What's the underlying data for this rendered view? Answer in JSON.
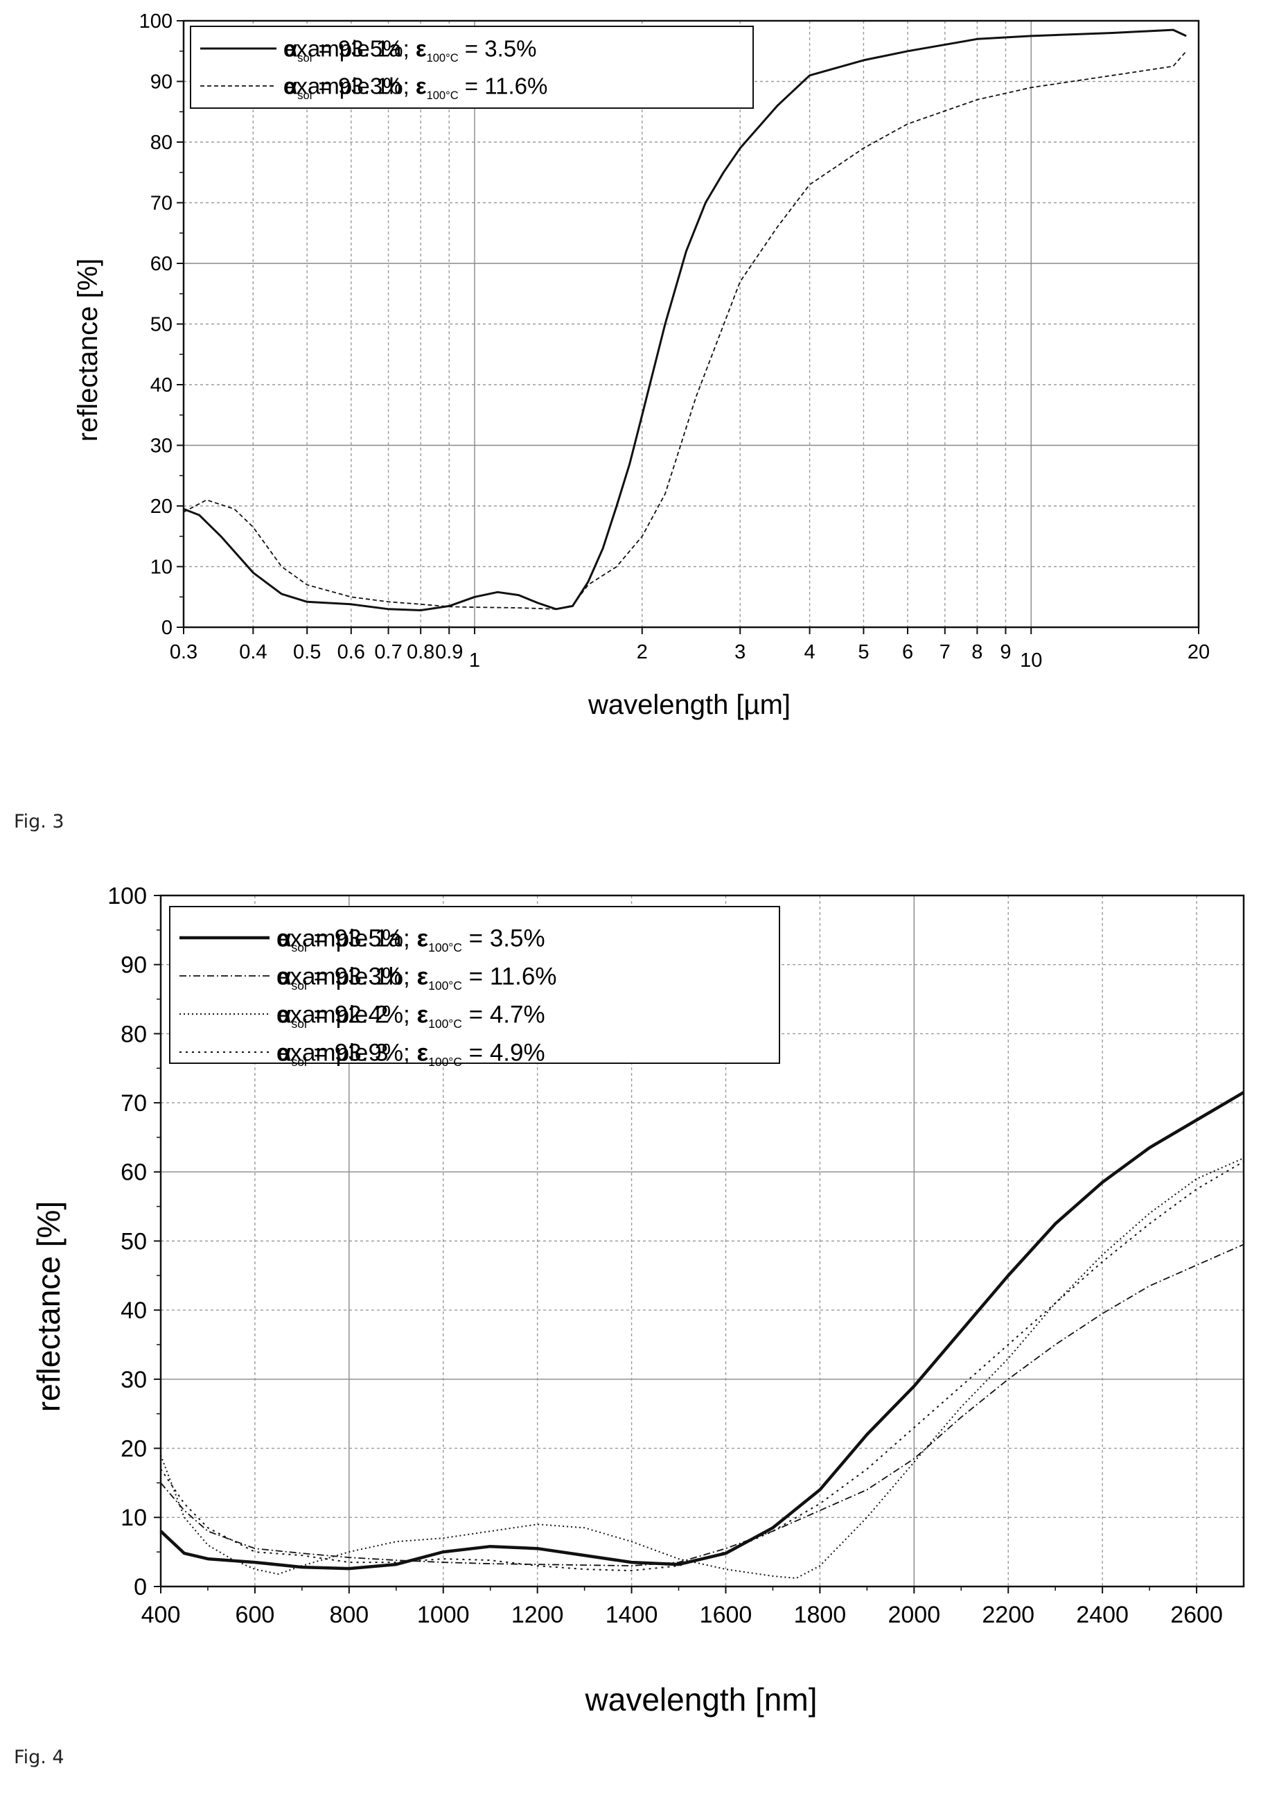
{
  "figures": [
    {
      "label": "Fig. 3"
    },
    {
      "label": "Fig. 4"
    }
  ],
  "chart_data": [
    {
      "type": "line",
      "xscale": "log",
      "xlabel": "wavelength [µm]",
      "ylabel": "reflectance [%]",
      "xlim": [
        0.3,
        20
      ],
      "ylim": [
        0,
        100
      ],
      "grid": true,
      "legend_position": "top-left",
      "xticks": [
        {
          "v": 0.3,
          "label": "0.3"
        },
        {
          "v": 0.4,
          "label": "0.4"
        },
        {
          "v": 0.5,
          "label": "0.5"
        },
        {
          "v": 0.6,
          "label": "0.6"
        },
        {
          "v": 0.7,
          "label": "0.7"
        },
        {
          "v": 0.8,
          "label": "0.8"
        },
        {
          "v": 0.9,
          "label": "0.9"
        },
        {
          "v": 1,
          "label": "1"
        },
        {
          "v": 2,
          "label": "2"
        },
        {
          "v": 3,
          "label": "3"
        },
        {
          "v": 4,
          "label": "4"
        },
        {
          "v": 5,
          "label": "5"
        },
        {
          "v": 6,
          "label": "6"
        },
        {
          "v": 7,
          "label": "7"
        },
        {
          "v": 8,
          "label": "8"
        },
        {
          "v": 9,
          "label": "9"
        },
        {
          "v": 10,
          "label": "10"
        },
        {
          "v": 20,
          "label": "20"
        }
      ],
      "yticks": [
        0,
        10,
        20,
        30,
        40,
        50,
        60,
        70,
        80,
        90,
        100
      ],
      "series": [
        {
          "name": "example 1a",
          "alpha": "93.5%",
          "eps": "3.5%",
          "style": "solid",
          "x": [
            0.3,
            0.32,
            0.35,
            0.4,
            0.45,
            0.5,
            0.6,
            0.7,
            0.8,
            0.9,
            1.0,
            1.1,
            1.2,
            1.3,
            1.4,
            1.5,
            1.6,
            1.7,
            1.8,
            1.9,
            2.0,
            2.2,
            2.4,
            2.6,
            2.8,
            3.0,
            3.5,
            4.0,
            5.0,
            6.0,
            8.0,
            10.0,
            14.0,
            18.0,
            19.0
          ],
          "y": [
            19.5,
            18.5,
            15.0,
            9.0,
            5.5,
            4.2,
            3.8,
            3.0,
            2.8,
            3.5,
            5.0,
            5.8,
            5.3,
            4.0,
            3.0,
            3.5,
            7.5,
            13.0,
            20.0,
            27.0,
            35.0,
            50.0,
            62.0,
            70.0,
            75.0,
            79.0,
            86.0,
            91.0,
            93.5,
            95.0,
            97.0,
            97.5,
            98.0,
            98.5,
            97.5
          ]
        },
        {
          "name": "example 1b",
          "alpha": "93.3%",
          "eps": "11.6%",
          "style": "dashed",
          "x": [
            0.3,
            0.33,
            0.37,
            0.4,
            0.45,
            0.5,
            0.6,
            0.7,
            0.8,
            0.9,
            1.0,
            1.2,
            1.4,
            1.5,
            1.6,
            1.8,
            2.0,
            2.2,
            2.5,
            3.0,
            3.5,
            4.0,
            5.0,
            6.0,
            8.0,
            10.0,
            14.0,
            18.0,
            19.0
          ],
          "y": [
            19.0,
            21.0,
            19.5,
            16.5,
            10.0,
            7.0,
            5.0,
            4.2,
            3.8,
            3.4,
            3.3,
            3.2,
            3.0,
            3.6,
            7.0,
            10.0,
            15.0,
            22.0,
            38.0,
            57.0,
            66.0,
            73.0,
            79.0,
            83.0,
            87.0,
            89.0,
            91.0,
            92.5,
            95.0
          ]
        }
      ]
    },
    {
      "type": "line",
      "xlabel": "wavelength [nm]",
      "ylabel": "reflectance [%]",
      "xlim": [
        400,
        2700
      ],
      "ylim": [
        0,
        100
      ],
      "grid": true,
      "legend_position": "top-left",
      "xticks": [
        400,
        600,
        800,
        1000,
        1200,
        1400,
        1600,
        1800,
        2000,
        2200,
        2400,
        2600
      ],
      "yticks": [
        0,
        10,
        20,
        30,
        40,
        50,
        60,
        70,
        80,
        90,
        100
      ],
      "series": [
        {
          "name": "example 1a",
          "alpha": "93.5%",
          "eps": "3.5%",
          "style": "thick",
          "x": [
            400,
            450,
            500,
            600,
            700,
            800,
            900,
            1000,
            1100,
            1200,
            1300,
            1400,
            1500,
            1600,
            1700,
            1800,
            1900,
            2000,
            2100,
            2200,
            2300,
            2400,
            2500,
            2600,
            2700
          ],
          "y": [
            8.0,
            4.8,
            4.0,
            3.5,
            2.8,
            2.6,
            3.2,
            5.0,
            5.8,
            5.5,
            4.5,
            3.5,
            3.2,
            4.8,
            8.5,
            14.0,
            22.0,
            29.0,
            37.0,
            45.0,
            52.5,
            58.5,
            63.5,
            67.5,
            71.5
          ]
        },
        {
          "name": "example 1b",
          "alpha": "93.3%",
          "eps": "11.6%",
          "style": "dashdot",
          "x": [
            400,
            450,
            500,
            600,
            700,
            800,
            900,
            1000,
            1100,
            1200,
            1300,
            1400,
            1500,
            1600,
            1700,
            1800,
            1900,
            2000,
            2100,
            2200,
            2300,
            2400,
            2500,
            2600,
            2700
          ],
          "y": [
            15.0,
            11.0,
            8.0,
            5.5,
            4.8,
            4.2,
            3.8,
            3.5,
            3.3,
            3.2,
            3.1,
            3.0,
            3.5,
            5.5,
            8.0,
            11.0,
            14.0,
            18.5,
            24.5,
            30.0,
            35.0,
            39.5,
            43.5,
            46.5,
            49.5
          ]
        },
        {
          "name": "example 2",
          "alpha": "92.4%",
          "eps": "4.7%",
          "style": "dotted",
          "x": [
            400,
            450,
            500,
            550,
            600,
            650,
            700,
            800,
            900,
            1000,
            1100,
            1200,
            1300,
            1400,
            1500,
            1600,
            1700,
            1750,
            1800,
            1900,
            2000,
            2100,
            2200,
            2300,
            2400,
            2500,
            2600,
            2700
          ],
          "y": [
            19.0,
            10.0,
            6.0,
            4.0,
            2.5,
            1.8,
            3.0,
            5.0,
            6.5,
            7.0,
            8.0,
            9.0,
            8.5,
            6.5,
            4.0,
            2.5,
            1.5,
            1.2,
            3.0,
            10.0,
            18.0,
            26.0,
            33.0,
            41.0,
            48.0,
            54.0,
            59.0,
            62.0
          ]
        },
        {
          "name": "example 3",
          "alpha": "93.9%",
          "eps": "4.9%",
          "style": "sparse",
          "x": [
            400,
            450,
            500,
            600,
            700,
            800,
            900,
            1000,
            1100,
            1200,
            1300,
            1400,
            1500,
            1600,
            1700,
            1800,
            1900,
            2000,
            2100,
            2200,
            2300,
            2400,
            2500,
            2600,
            2700
          ],
          "y": [
            17.0,
            12.0,
            8.5,
            5.0,
            4.5,
            3.5,
            3.5,
            4.0,
            3.8,
            3.0,
            2.5,
            2.3,
            3.0,
            5.0,
            8.0,
            12.0,
            17.0,
            23.0,
            29.0,
            35.0,
            41.0,
            47.0,
            52.5,
            57.5,
            61.5
          ]
        }
      ]
    }
  ]
}
